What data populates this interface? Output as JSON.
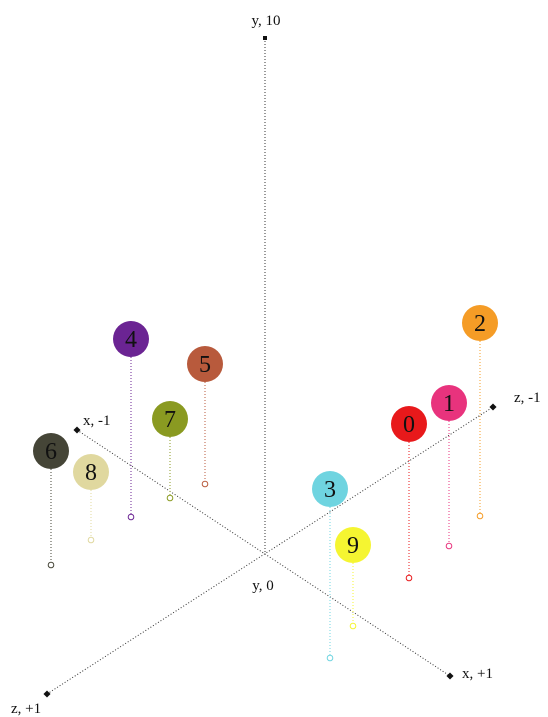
{
  "axes": {
    "y_top": "y, 10",
    "y_origin": "y, 0",
    "x_neg": "x, -1",
    "x_pos": "x, +1",
    "z_neg": "z, -1",
    "z_pos": "z, +1"
  },
  "points": [
    {
      "label": "0",
      "color": "#e8191b"
    },
    {
      "label": "1",
      "color": "#e8337d"
    },
    {
      "label": "2",
      "color": "#f59c26"
    },
    {
      "label": "3",
      "color": "#6fd4e0"
    },
    {
      "label": "4",
      "color": "#6b2493"
    },
    {
      "label": "5",
      "color": "#b85a3c"
    },
    {
      "label": "6",
      "color": "#454537"
    },
    {
      "label": "7",
      "color": "#8a9a21"
    },
    {
      "label": "8",
      "color": "#e0d89f"
    },
    {
      "label": "9",
      "color": "#f5f531"
    }
  ]
}
